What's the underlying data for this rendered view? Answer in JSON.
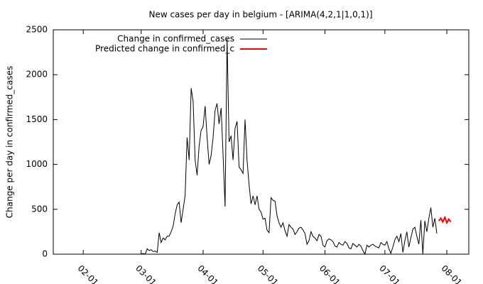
{
  "chart_data": {
    "type": "line",
    "title": "New cases per day in belgium -  [ARIMA(4,2,1|1,0,1)]",
    "y_label": "Change per day in confirmed_cases",
    "xlim": [
      "01-17",
      "08-12"
    ],
    "xticks": [
      "02-01",
      "03-01",
      "04-01",
      "05-01",
      "06-01",
      "07-01",
      "08-01"
    ],
    "ylim": [
      0,
      2500
    ],
    "yticks": [
      0,
      500,
      1000,
      1500,
      2000,
      2500
    ],
    "series": [
      {
        "name": "Change in confirmed_cases",
        "color": "#000000",
        "x": [
          "02-28",
          "02-29",
          "03-01",
          "03-02",
          "03-03",
          "03-04",
          "03-05",
          "03-06",
          "03-07",
          "03-08",
          "03-09",
          "03-10",
          "03-11",
          "03-12",
          "03-13",
          "03-14",
          "03-15",
          "03-16",
          "03-17",
          "03-18",
          "03-19",
          "03-20",
          "03-21",
          "03-22",
          "03-23",
          "03-24",
          "03-25",
          "03-26",
          "03-27",
          "03-28",
          "03-29",
          "03-30",
          "03-31",
          "04-01",
          "04-02",
          "04-03",
          "04-04",
          "04-05",
          "04-06",
          "04-07",
          "04-08",
          "04-09",
          "04-10",
          "04-11",
          "04-12",
          "04-13",
          "04-14",
          "04-15",
          "04-16",
          "04-17",
          "04-18",
          "04-19",
          "04-20",
          "04-21",
          "04-22",
          "04-23",
          "04-24",
          "04-25",
          "04-26",
          "04-27",
          "04-28",
          "04-29",
          "04-30",
          "05-01",
          "05-02",
          "05-03",
          "05-04",
          "05-05",
          "05-06",
          "05-07",
          "05-08",
          "05-09",
          "05-10",
          "05-11",
          "05-12",
          "05-13",
          "05-14",
          "05-15",
          "05-16",
          "05-17",
          "05-18",
          "05-19",
          "05-20",
          "05-21",
          "05-22",
          "05-23",
          "05-24",
          "05-25",
          "05-26",
          "05-27",
          "05-28",
          "05-29",
          "05-30",
          "05-31",
          "06-01",
          "06-02",
          "06-03",
          "06-04",
          "06-05",
          "06-06",
          "06-07",
          "06-08",
          "06-09",
          "06-10",
          "06-11",
          "06-12",
          "06-13",
          "06-14",
          "06-15",
          "06-16",
          "06-17",
          "06-18",
          "06-19",
          "06-20",
          "06-21",
          "06-22",
          "06-23",
          "06-24",
          "06-25",
          "06-26",
          "06-27",
          "06-28",
          "06-29",
          "06-30",
          "07-01",
          "07-02",
          "07-03",
          "07-04",
          "07-05",
          "07-06",
          "07-07",
          "07-08",
          "07-09",
          "07-10",
          "07-11",
          "07-12",
          "07-13",
          "07-14",
          "07-15",
          "07-16",
          "07-17",
          "07-18",
          "07-19",
          "07-20",
          "07-21",
          "07-22",
          "07-23",
          "07-24",
          "07-25",
          "07-26",
          "07-27"
        ],
        "values": [
          0,
          0,
          2,
          8,
          0,
          60,
          40,
          50,
          30,
          35,
          20,
          240,
          130,
          180,
          160,
          200,
          200,
          250,
          310,
          450,
          550,
          580,
          350,
          500,
          650,
          1300,
          1050,
          1850,
          1700,
          1050,
          880,
          1200,
          1380,
          1420,
          1650,
          1300,
          1000,
          1100,
          1300,
          1600,
          1680,
          1450,
          1630,
          1100,
          530,
          2400,
          1250,
          1320,
          1050,
          1400,
          1480,
          970,
          940,
          900,
          1500,
          1050,
          780,
          560,
          650,
          550,
          650,
          500,
          470,
          390,
          400,
          270,
          240,
          630,
          600,
          590,
          430,
          350,
          300,
          350,
          260,
          200,
          330,
          300,
          280,
          220,
          250,
          290,
          300,
          270,
          230,
          110,
          150,
          250,
          200,
          180,
          150,
          220,
          200,
          100,
          80,
          150,
          170,
          160,
          140,
          90,
          80,
          130,
          110,
          100,
          140,
          120,
          70,
          60,
          120,
          100,
          80,
          110,
          90,
          40,
          0,
          100,
          80,
          100,
          110,
          90,
          80,
          70,
          130,
          110,
          100,
          140,
          60,
          10,
          80,
          160,
          200,
          140,
          230,
          20,
          150,
          250,
          80,
          180,
          280,
          300,
          200,
          110,
          380,
          0,
          370,
          250,
          400,
          520,
          300,
          400,
          230
        ]
      },
      {
        "name": "Predicted change in confirmed_c",
        "color": "#ff0000",
        "x": [
          "07-28",
          "07-29",
          "07-30",
          "07-31",
          "08-01",
          "08-02",
          "08-03"
        ],
        "values": [
          370,
          400,
          360,
          410,
          350,
          390,
          360
        ]
      }
    ]
  }
}
